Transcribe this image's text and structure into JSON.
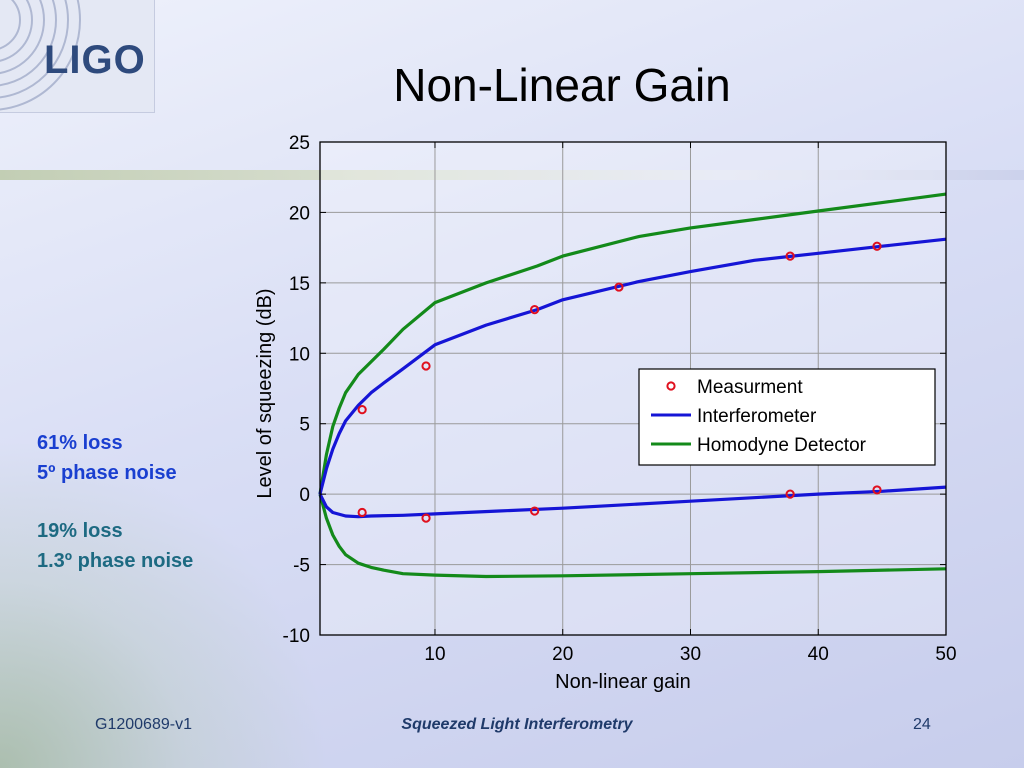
{
  "slide": {
    "title": "Non-Linear Gain",
    "logo": "LIGO",
    "notes": {
      "blue_line1": "61% loss",
      "blue_line2": "5º phase noise",
      "teal_line1": "19% loss",
      "teal_line2": "1.3º phase noise"
    },
    "footer": {
      "doc_id": "G1200689-v1",
      "subtitle": "Squeezed Light Interferometry",
      "page_number": "24"
    }
  },
  "colors": {
    "interferometer": "#1515d6",
    "homodyne": "#138a1a",
    "measurement": "#e0101e",
    "note_blue": "#1a3fd0",
    "note_teal": "#1d6a82"
  },
  "chart_data": {
    "type": "line",
    "xlabel": "Non-linear gain",
    "ylabel": "Level of squeezing (dB)",
    "xlim": [
      1,
      50
    ],
    "ylim": [
      -10,
      25
    ],
    "x_ticks": [
      10,
      20,
      30,
      40,
      50
    ],
    "y_ticks": [
      -10,
      -5,
      0,
      5,
      10,
      15,
      20,
      25
    ],
    "grid": true,
    "legend_position": "center-right",
    "legend": [
      "Measurment",
      "Interferometer",
      "Homodyne Detector"
    ],
    "series": [
      {
        "name": "Interferometer",
        "style": "line",
        "branch": "anti-squeezing",
        "x": [
          1,
          1.5,
          2,
          2.5,
          3,
          4,
          5,
          6,
          7.5,
          10,
          14,
          18,
          20,
          26,
          30,
          35,
          40,
          45,
          50
        ],
        "y": [
          0,
          1.8,
          3.2,
          4.3,
          5.2,
          6.3,
          7.2,
          7.9,
          8.9,
          10.6,
          12.0,
          13.1,
          13.8,
          15.1,
          15.8,
          16.6,
          17.1,
          17.6,
          18.1
        ]
      },
      {
        "name": "Interferometer",
        "style": "line",
        "branch": "squeezing",
        "x": [
          1,
          1.5,
          2,
          3,
          4,
          5,
          7.5,
          10,
          15,
          20,
          30,
          40,
          45,
          50
        ],
        "y": [
          0,
          -0.9,
          -1.3,
          -1.55,
          -1.6,
          -1.55,
          -1.5,
          -1.4,
          -1.2,
          -1.0,
          -0.5,
          0,
          0.2,
          0.5
        ]
      },
      {
        "name": "Homodyne Detector",
        "style": "line",
        "branch": "anti-squeezing",
        "x": [
          1,
          1.5,
          2,
          2.5,
          3,
          4,
          5,
          6,
          7.5,
          10,
          14,
          18,
          20,
          26,
          30,
          35,
          40,
          45,
          50
        ],
        "y": [
          0,
          2.8,
          4.8,
          6.1,
          7.2,
          8.5,
          9.4,
          10.3,
          11.7,
          13.6,
          15.0,
          16.2,
          16.9,
          18.3,
          18.9,
          19.5,
          20.1,
          20.7,
          21.3
        ]
      },
      {
        "name": "Homodyne Detector",
        "style": "line",
        "branch": "squeezing",
        "x": [
          1,
          1.5,
          2,
          2.5,
          3,
          4,
          5,
          6,
          7.5,
          10,
          14,
          20,
          30,
          40,
          50
        ],
        "y": [
          0,
          -1.7,
          -2.9,
          -3.7,
          -4.3,
          -4.9,
          -5.2,
          -5.4,
          -5.65,
          -5.75,
          -5.85,
          -5.8,
          -5.65,
          -5.5,
          -5.3
        ]
      },
      {
        "name": "Measurment",
        "style": "marker",
        "x": [
          4.3,
          9.3,
          17.8,
          24.4,
          37.8,
          44.6,
          4.3,
          9.3,
          17.8,
          37.8,
          44.6
        ],
        "y": [
          6.0,
          9.1,
          13.1,
          14.7,
          16.9,
          17.6,
          -1.3,
          -1.7,
          -1.2,
          0,
          0.3
        ]
      }
    ]
  }
}
